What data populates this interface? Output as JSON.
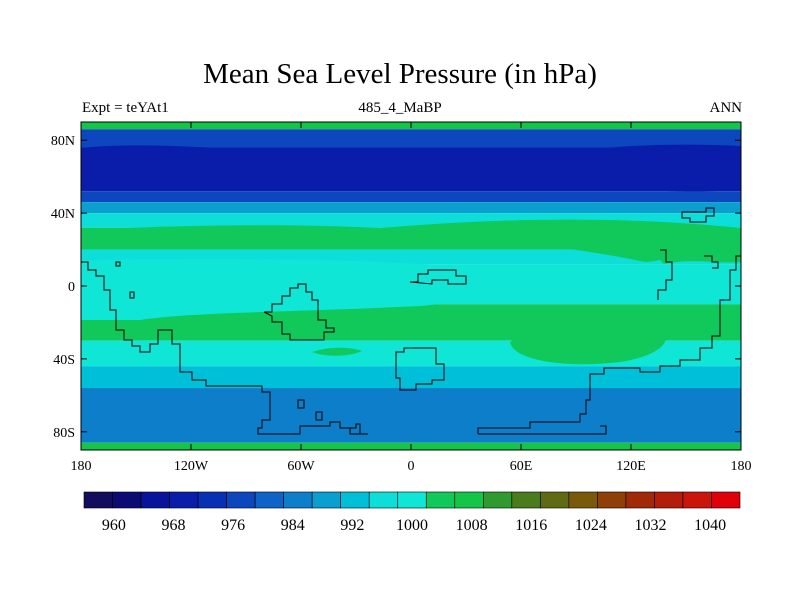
{
  "chart_data": {
    "type": "heatmap",
    "title": "Mean Sea Level Pressure (in hPa)",
    "subtitle_left": "Expt = teYAt1",
    "subtitle_center": "485_4_MaBP",
    "subtitle_right": "ANN",
    "x_ticks": [
      "180",
      "120W",
      "60W",
      "0",
      "60E",
      "120E",
      "180"
    ],
    "x_tick_values": [
      -180,
      -120,
      -60,
      0,
      60,
      120,
      180
    ],
    "y_ticks": [
      "80N",
      "40N",
      "0",
      "40S",
      "80S"
    ],
    "y_tick_values": [
      80,
      40,
      0,
      -40,
      -80
    ],
    "xlim": [
      -180,
      180
    ],
    "ylim": [
      -90,
      90
    ],
    "colorbar": {
      "levels": [
        956,
        960,
        964,
        968,
        972,
        976,
        980,
        984,
        988,
        992,
        996,
        1000,
        1004,
        1008,
        1012,
        1016,
        1020,
        1024,
        1028,
        1032,
        1036,
        1040,
        1044
      ],
      "tick_labels": [
        "960",
        "968",
        "976",
        "984",
        "992",
        "1000",
        "1008",
        "1016",
        "1024",
        "1032",
        "1040"
      ],
      "tick_values": [
        960,
        968,
        976,
        984,
        992,
        1000,
        1008,
        1016,
        1024,
        1032,
        1040
      ],
      "colors": [
        "#120d5c",
        "#0c0b73",
        "#08129a",
        "#0a1caa",
        "#0830b4",
        "#0c47bd",
        "#0d63c6",
        "#0d7ec9",
        "#0a9fcf",
        "#00bfd9",
        "#0dded9",
        "#0fe6d6",
        "#10c95a",
        "#15c548",
        "#309a30",
        "#4a7b1c",
        "#5f6a12",
        "#7a5a0a",
        "#8f3f08",
        "#a02a08",
        "#b41d0a",
        "#cc150a",
        "#e0000a"
      ]
    },
    "latitude_bands": [
      {
        "from": 90,
        "to": 86,
        "value": 1008
      },
      {
        "from": 86,
        "to": 76,
        "value": 976
      },
      {
        "from": 76,
        "to": 52,
        "value": 968
      },
      {
        "from": 52,
        "to": 46,
        "value": 976
      },
      {
        "from": 46,
        "to": 40,
        "value": 988
      },
      {
        "from": 40,
        "to": 32,
        "value": 996
      },
      {
        "from": 32,
        "to": 20,
        "value": 1004
      },
      {
        "from": 20,
        "to": 12,
        "value": 996
      },
      {
        "from": 12,
        "to": -10,
        "value": 1000
      },
      {
        "from": -10,
        "to": -30,
        "value": 1004
      },
      {
        "from": -30,
        "to": -44,
        "value": 1000
      },
      {
        "from": -44,
        "to": -56,
        "value": 992
      },
      {
        "from": -56,
        "to": -86,
        "value": 984
      },
      {
        "from": -86,
        "to": -90,
        "value": 1008
      }
    ]
  }
}
